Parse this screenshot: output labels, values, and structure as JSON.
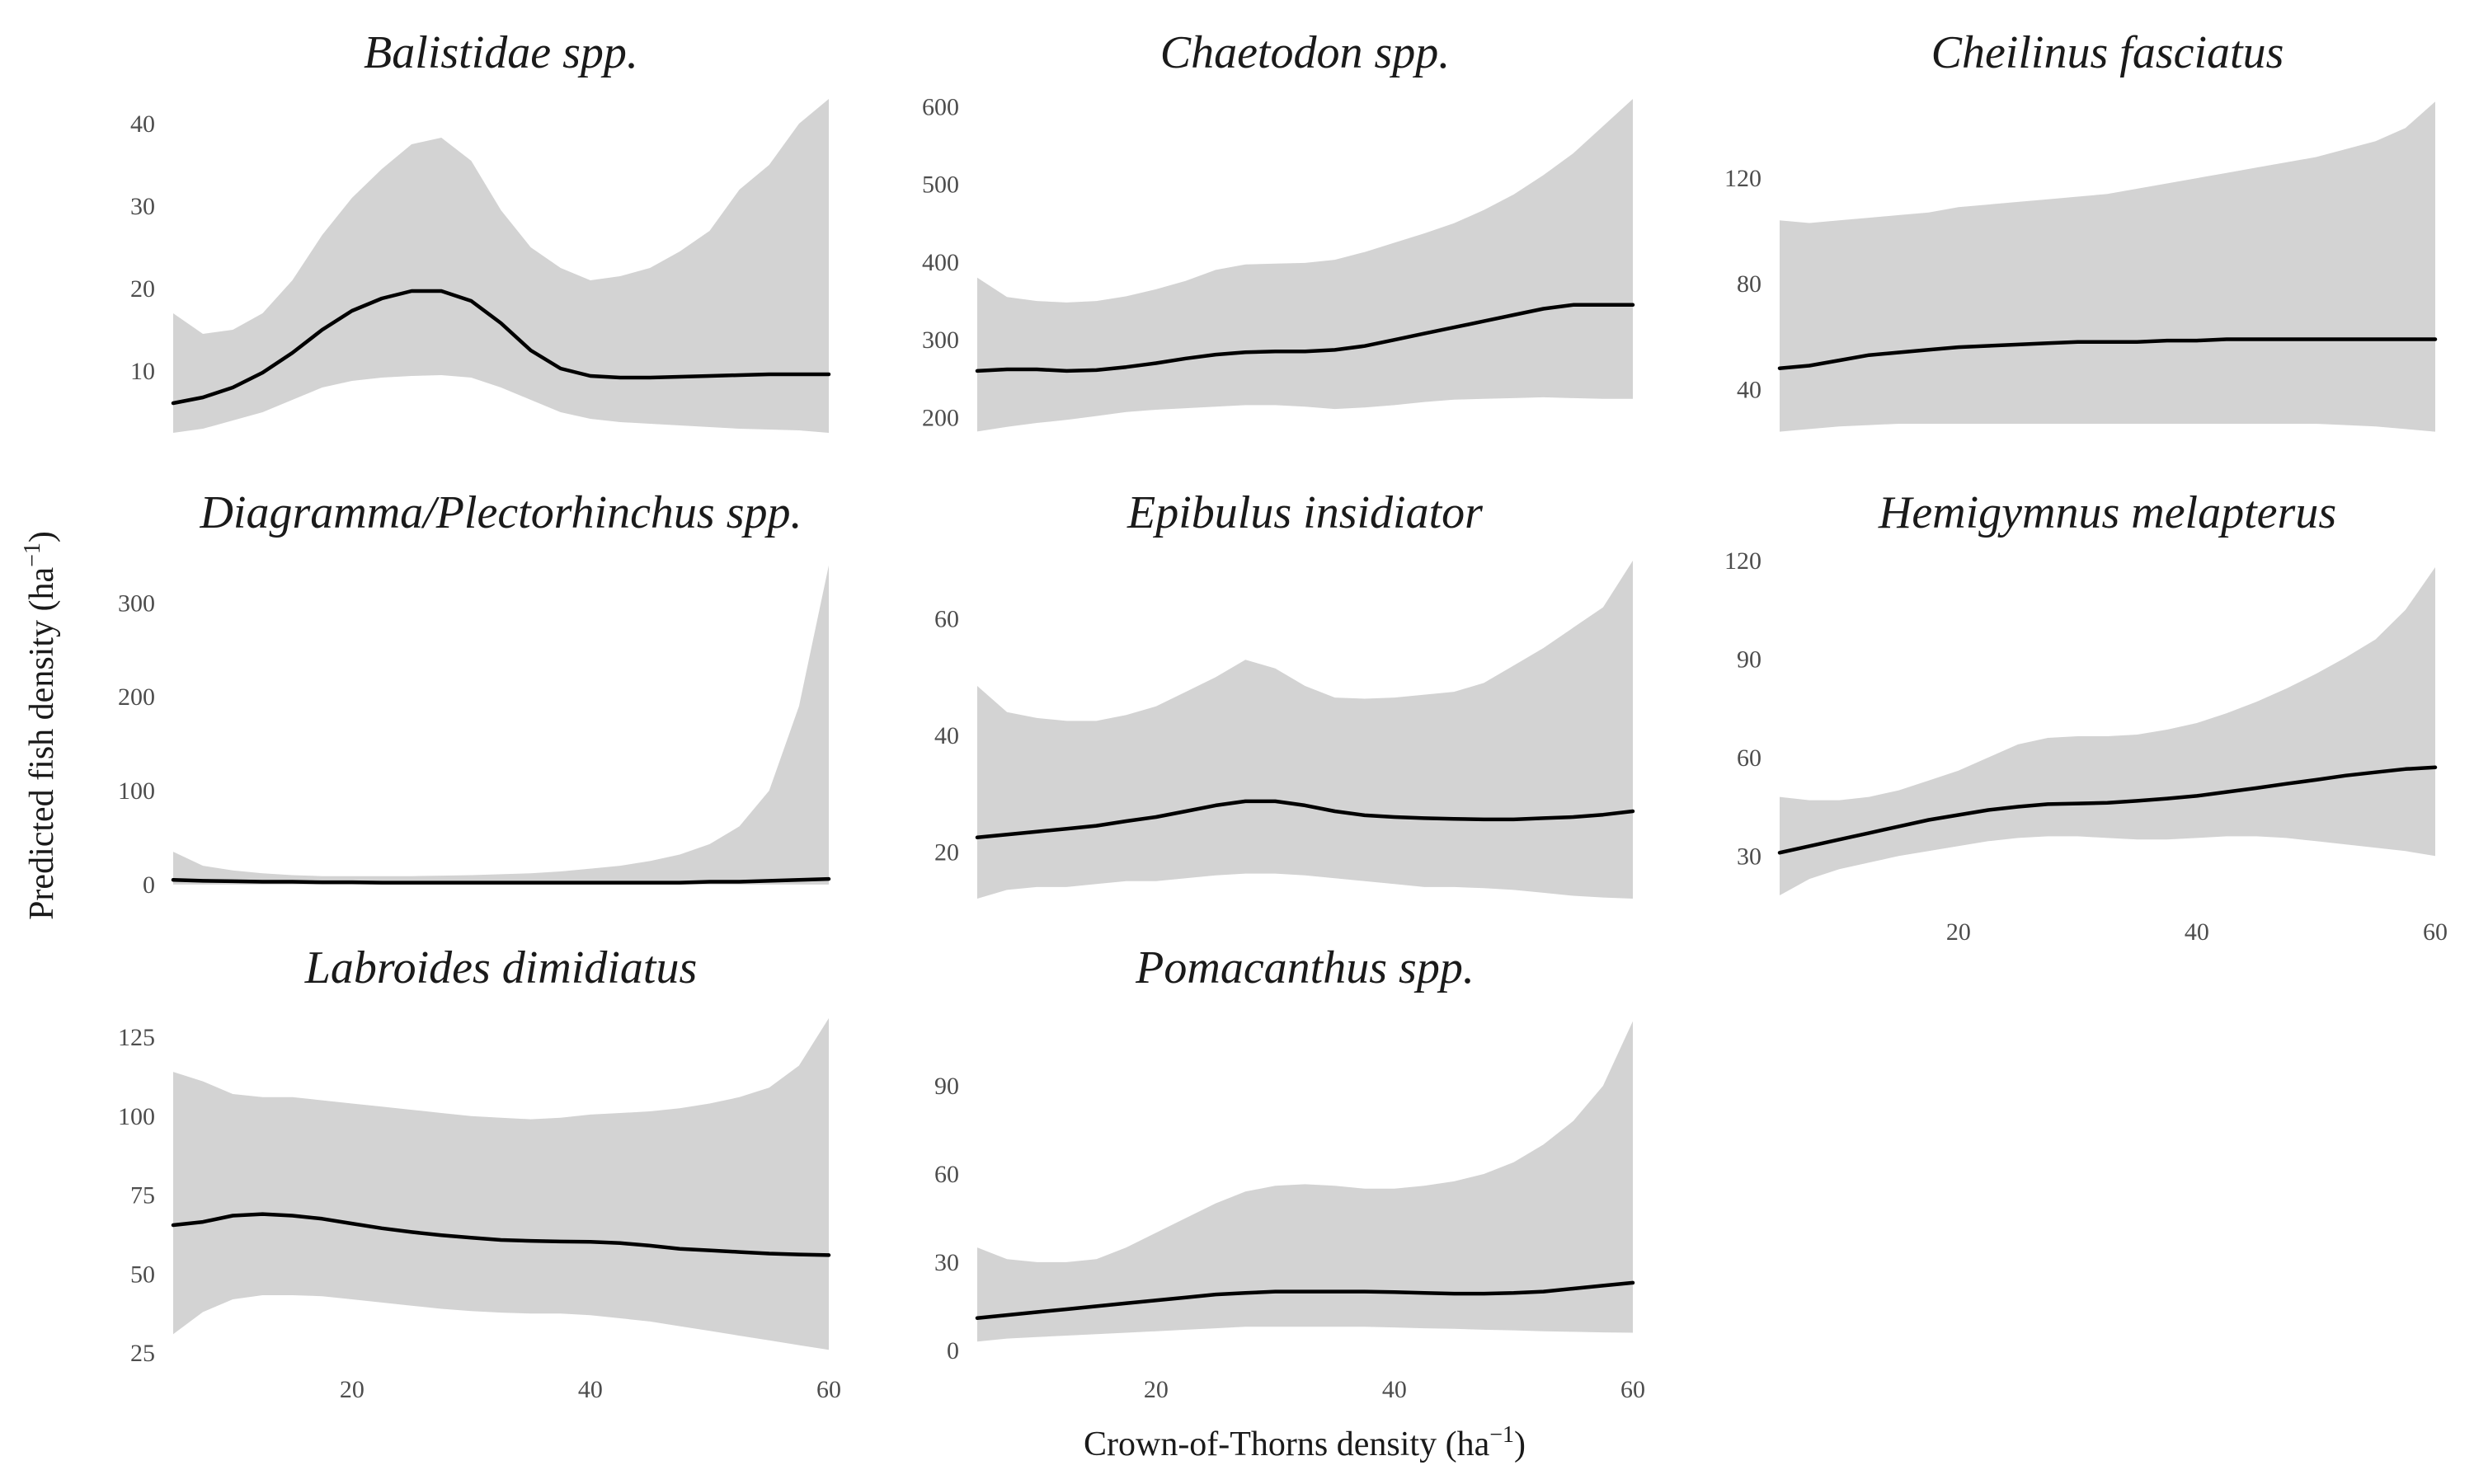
{
  "chart_data": {
    "type": "line",
    "layout": "faceted",
    "xlabel": {
      "main": "Crown-of-Thorns density (ha",
      "sup": "−1",
      "end": ")"
    },
    "ylabel": {
      "main": "Predicted fish density (ha",
      "sup": "−1",
      "end": ")"
    },
    "xlim": [
      5,
      60
    ],
    "x_ticks": [
      20,
      40,
      60
    ],
    "grid": false,
    "legend": "none",
    "colors": {
      "line": "#000000",
      "ribbon": "#d3d3d3",
      "ticks": "#4d4d4d",
      "text": "#1a1a1a"
    },
    "x": [
      5,
      7.5,
      10,
      12.5,
      15,
      17.5,
      20,
      22.5,
      25,
      27.5,
      30,
      32.5,
      35,
      37.5,
      40,
      42.5,
      45,
      47.5,
      50,
      52.5,
      55,
      57.5,
      60
    ],
    "panels": [
      {
        "title": "Balistidae spp.",
        "ylim": [
          2,
          43
        ],
        "y_ticks": [
          10,
          20,
          30,
          40
        ],
        "show_x_ticks": false,
        "fit": [
          6.1,
          6.8,
          8.0,
          9.8,
          12.2,
          15.0,
          17.3,
          18.8,
          19.7,
          19.7,
          18.5,
          15.8,
          12.5,
          10.3,
          9.4,
          9.2,
          9.2,
          9.3,
          9.4,
          9.5,
          9.6,
          9.6,
          9.6
        ],
        "lower": [
          2.5,
          3.0,
          4.0,
          5.0,
          6.5,
          8.0,
          8.8,
          9.2,
          9.4,
          9.5,
          9.2,
          8.0,
          6.5,
          5.0,
          4.2,
          3.8,
          3.6,
          3.4,
          3.2,
          3.0,
          2.9,
          2.8,
          2.5
        ],
        "upper": [
          17.0,
          14.5,
          15.0,
          17.0,
          21.0,
          26.5,
          31.0,
          34.5,
          37.5,
          38.3,
          35.5,
          29.5,
          25.0,
          22.5,
          21.0,
          21.5,
          22.5,
          24.5,
          27.0,
          32.0,
          35.0,
          40.0,
          43.0
        ]
      },
      {
        "title": "Chaetodon spp.",
        "ylim": [
          175,
          610
        ],
        "y_ticks": [
          200,
          300,
          400,
          500,
          600
        ],
        "show_x_ticks": false,
        "fit": [
          260,
          262,
          262,
          260,
          261,
          265,
          270,
          276,
          281,
          284,
          285,
          285,
          287,
          292,
          300,
          308,
          316,
          324,
          332,
          340,
          345,
          345,
          345
        ],
        "lower": [
          182,
          188,
          193,
          197,
          202,
          207,
          210,
          212,
          214,
          216,
          216,
          214,
          211,
          213,
          216,
          220,
          223,
          224,
          225,
          226,
          225,
          224,
          224
        ],
        "upper": [
          380,
          355,
          350,
          348,
          350,
          356,
          365,
          376,
          390,
          397,
          398,
          399,
          403,
          413,
          425,
          437,
          450,
          467,
          487,
          512,
          540,
          575,
          610
        ]
      },
      {
        "title": "Cheilinus fasciatus",
        "ylim": [
          22,
          150
        ],
        "y_ticks": [
          40,
          80,
          120
        ],
        "show_x_ticks": false,
        "fit": [
          48,
          49,
          51,
          53,
          54,
          55,
          56,
          56.5,
          57,
          57.5,
          58,
          58,
          58,
          58.5,
          58.5,
          59,
          59,
          59,
          59,
          59,
          59,
          59,
          59
        ],
        "lower": [
          24,
          25,
          26,
          26.5,
          27,
          27,
          27,
          27,
          27,
          27,
          27,
          27,
          27,
          27,
          27,
          27,
          27,
          27,
          27,
          26.5,
          26,
          25,
          24
        ],
        "upper": [
          104,
          103,
          104,
          105,
          106,
          107,
          109,
          110,
          111,
          112,
          113,
          114,
          116,
          118,
          120,
          122,
          124,
          126,
          128,
          131,
          134,
          139,
          149
        ]
      },
      {
        "title": "Diagramma/Plectorhinchus spp.",
        "ylim": [
          -15,
          345
        ],
        "y_ticks": [
          0,
          100,
          200,
          300
        ],
        "show_x_ticks": false,
        "fit": [
          5,
          4,
          3.5,
          3,
          3,
          2.5,
          2.5,
          2,
          2,
          2,
          2,
          2,
          2,
          2,
          2,
          2,
          2,
          2,
          3,
          3,
          4,
          5,
          6
        ],
        "lower": [
          0,
          0,
          0,
          0,
          0,
          0,
          0,
          0,
          0,
          0,
          0,
          0,
          0,
          0,
          0,
          0,
          0,
          0,
          0,
          0,
          0,
          0,
          0
        ],
        "upper": [
          35,
          20,
          15,
          12,
          10,
          9,
          9,
          9,
          9,
          9.5,
          10,
          11,
          12,
          14,
          17,
          20,
          25,
          32,
          43,
          62,
          100,
          190,
          340
        ]
      },
      {
        "title": "Epibulus insidiator",
        "ylim": [
          12,
          70
        ],
        "y_ticks": [
          20,
          40,
          60
        ],
        "show_x_ticks": false,
        "fit": [
          22.5,
          23,
          23.5,
          24,
          24.5,
          25.3,
          26,
          27,
          28,
          28.7,
          28.7,
          28,
          27,
          26.3,
          26,
          25.8,
          25.7,
          25.6,
          25.6,
          25.8,
          26,
          26.4,
          27
        ],
        "lower": [
          12,
          13.5,
          14,
          14,
          14.5,
          15,
          15,
          15.5,
          16,
          16.3,
          16.3,
          16,
          15.5,
          15,
          14.5,
          14,
          14,
          13.8,
          13.5,
          13,
          12.5,
          12.2,
          12
        ],
        "upper": [
          48.5,
          44,
          43,
          42.5,
          42.5,
          43.5,
          45,
          47.5,
          50,
          53,
          51.5,
          48.5,
          46.5,
          46.3,
          46.5,
          47,
          47.5,
          49,
          52,
          55,
          58.5,
          62,
          70
        ]
      },
      {
        "title": "Hemigymnus melapterus",
        "ylim": [
          17,
          120
        ],
        "y_ticks": [
          30,
          60,
          90,
          120
        ],
        "show_x_ticks": true,
        "fit": [
          31,
          33,
          35,
          37,
          39,
          41,
          42.5,
          44,
          45,
          45.8,
          46,
          46.2,
          46.8,
          47.5,
          48.3,
          49.5,
          50.7,
          52,
          53.2,
          54.5,
          55.5,
          56.5,
          57
        ],
        "lower": [
          18,
          23,
          26,
          28,
          30,
          31.5,
          33,
          34.5,
          35.5,
          36,
          36,
          35.5,
          35,
          35,
          35.5,
          36,
          36,
          35.5,
          34.5,
          33.5,
          32.5,
          31.5,
          30
        ],
        "upper": [
          48,
          47,
          47,
          48,
          50,
          53,
          56,
          60,
          64,
          66,
          66.5,
          66.5,
          67,
          68.5,
          70.5,
          73.5,
          77,
          81,
          85.5,
          90.5,
          96,
          105,
          118
        ]
      },
      {
        "title": "Labroides dimidiatus",
        "ylim": [
          24,
          131
        ],
        "y_ticks": [
          25,
          50,
          75,
          100,
          125
        ],
        "show_x_ticks": true,
        "fit": [
          65.5,
          66.5,
          68.5,
          69,
          68.5,
          67.5,
          66,
          64.5,
          63.3,
          62.3,
          61.5,
          60.8,
          60.5,
          60.3,
          60.2,
          59.8,
          59,
          58,
          57.5,
          57,
          56.5,
          56.2,
          56
        ],
        "lower": [
          31,
          38,
          42,
          43.3,
          43.3,
          43,
          42,
          41,
          40,
          39,
          38.3,
          37.8,
          37.5,
          37.5,
          37,
          36,
          35,
          33.5,
          32,
          30.5,
          29,
          27.5,
          26
        ],
        "upper": [
          114,
          111,
          107,
          106,
          106,
          105,
          104,
          103,
          102,
          101,
          100,
          99.5,
          99,
          99.5,
          100.5,
          101,
          101.5,
          102.5,
          104,
          106,
          109,
          116,
          131
        ]
      },
      {
        "title": "Pomacanthus spp.",
        "ylim": [
          -2,
          113
        ],
        "y_ticks": [
          0,
          30,
          60,
          90
        ],
        "show_x_ticks": true,
        "fit": [
          11,
          12,
          13,
          14,
          15,
          16,
          17,
          18,
          19,
          19.5,
          20,
          20,
          20,
          20,
          19.8,
          19.5,
          19.3,
          19.3,
          19.5,
          20,
          21,
          22,
          23
        ],
        "lower": [
          3,
          4,
          4.5,
          5,
          5.5,
          6,
          6.5,
          7,
          7.5,
          8,
          8,
          8,
          8,
          8,
          7.8,
          7.5,
          7.3,
          7,
          6.8,
          6.5,
          6.3,
          6.1,
          6
        ],
        "upper": [
          35,
          31,
          30,
          30,
          31,
          35,
          40,
          45,
          50,
          54,
          56,
          56.5,
          56,
          55,
          55,
          56,
          57.5,
          60,
          64,
          70,
          78,
          90,
          112
        ]
      }
    ]
  }
}
